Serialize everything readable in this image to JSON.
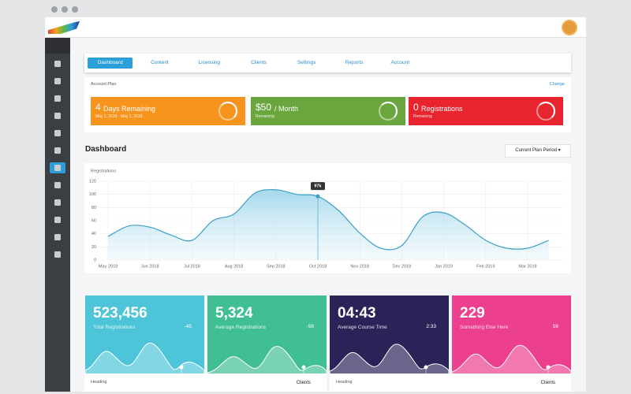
{
  "nav": {
    "tabs": [
      "Dashboard",
      "Content",
      "Licensing",
      "Clients",
      "Settings",
      "Reports",
      "Account"
    ]
  },
  "account_plan": {
    "label": "Account Plan",
    "action": "Change",
    "cards": [
      {
        "number": "4",
        "text": "Days Remaining",
        "sub": "May 2, 2018 - May 2, 2018"
      },
      {
        "number": "$50",
        "text": "/ Month",
        "sub": "Remaining"
      },
      {
        "number": "0",
        "text": "Registrations",
        "sub": "Remaining"
      }
    ]
  },
  "dashboard": {
    "title": "Dashboard",
    "period": "Current Plan Period"
  },
  "chart_data": {
    "type": "line",
    "title": "Registrations",
    "categories": [
      "May 2018",
      null,
      "Jun 2018",
      null,
      "Jul 2018",
      null,
      "Aug 2018",
      null,
      "Sep 2018",
      null,
      "Oct 2018",
      null,
      "Nov 2018",
      null,
      "Dec 2018",
      null,
      "Jan 2019",
      null,
      "Feb 2019",
      null,
      "Mar 2019",
      null
    ],
    "values": [
      36,
      52,
      50,
      38,
      30,
      60,
      70,
      102,
      107,
      100,
      97,
      75,
      41,
      18,
      22,
      66,
      72,
      54,
      30,
      18,
      18,
      30
    ],
    "color": "#3a9fc8",
    "ylim": [
      0,
      120
    ],
    "yticks": [
      0,
      20,
      40,
      60,
      80,
      100,
      120
    ],
    "grid": true,
    "annotation": "97k"
  },
  "stats": [
    {
      "value": "523,456",
      "label": "Total Registrations",
      "change": "-45"
    },
    {
      "value": "5,324",
      "label": "Average Registrations",
      "change": "-56"
    },
    {
      "value": "04:43",
      "label": "Average Course Time",
      "change": "2:33"
    },
    {
      "value": "229",
      "label": "Something Else Here",
      "change": "56"
    }
  ],
  "bottom": [
    {
      "heading": "Heading",
      "filter": "Clients"
    },
    {
      "heading": "Heading",
      "filter": "Clients"
    }
  ]
}
